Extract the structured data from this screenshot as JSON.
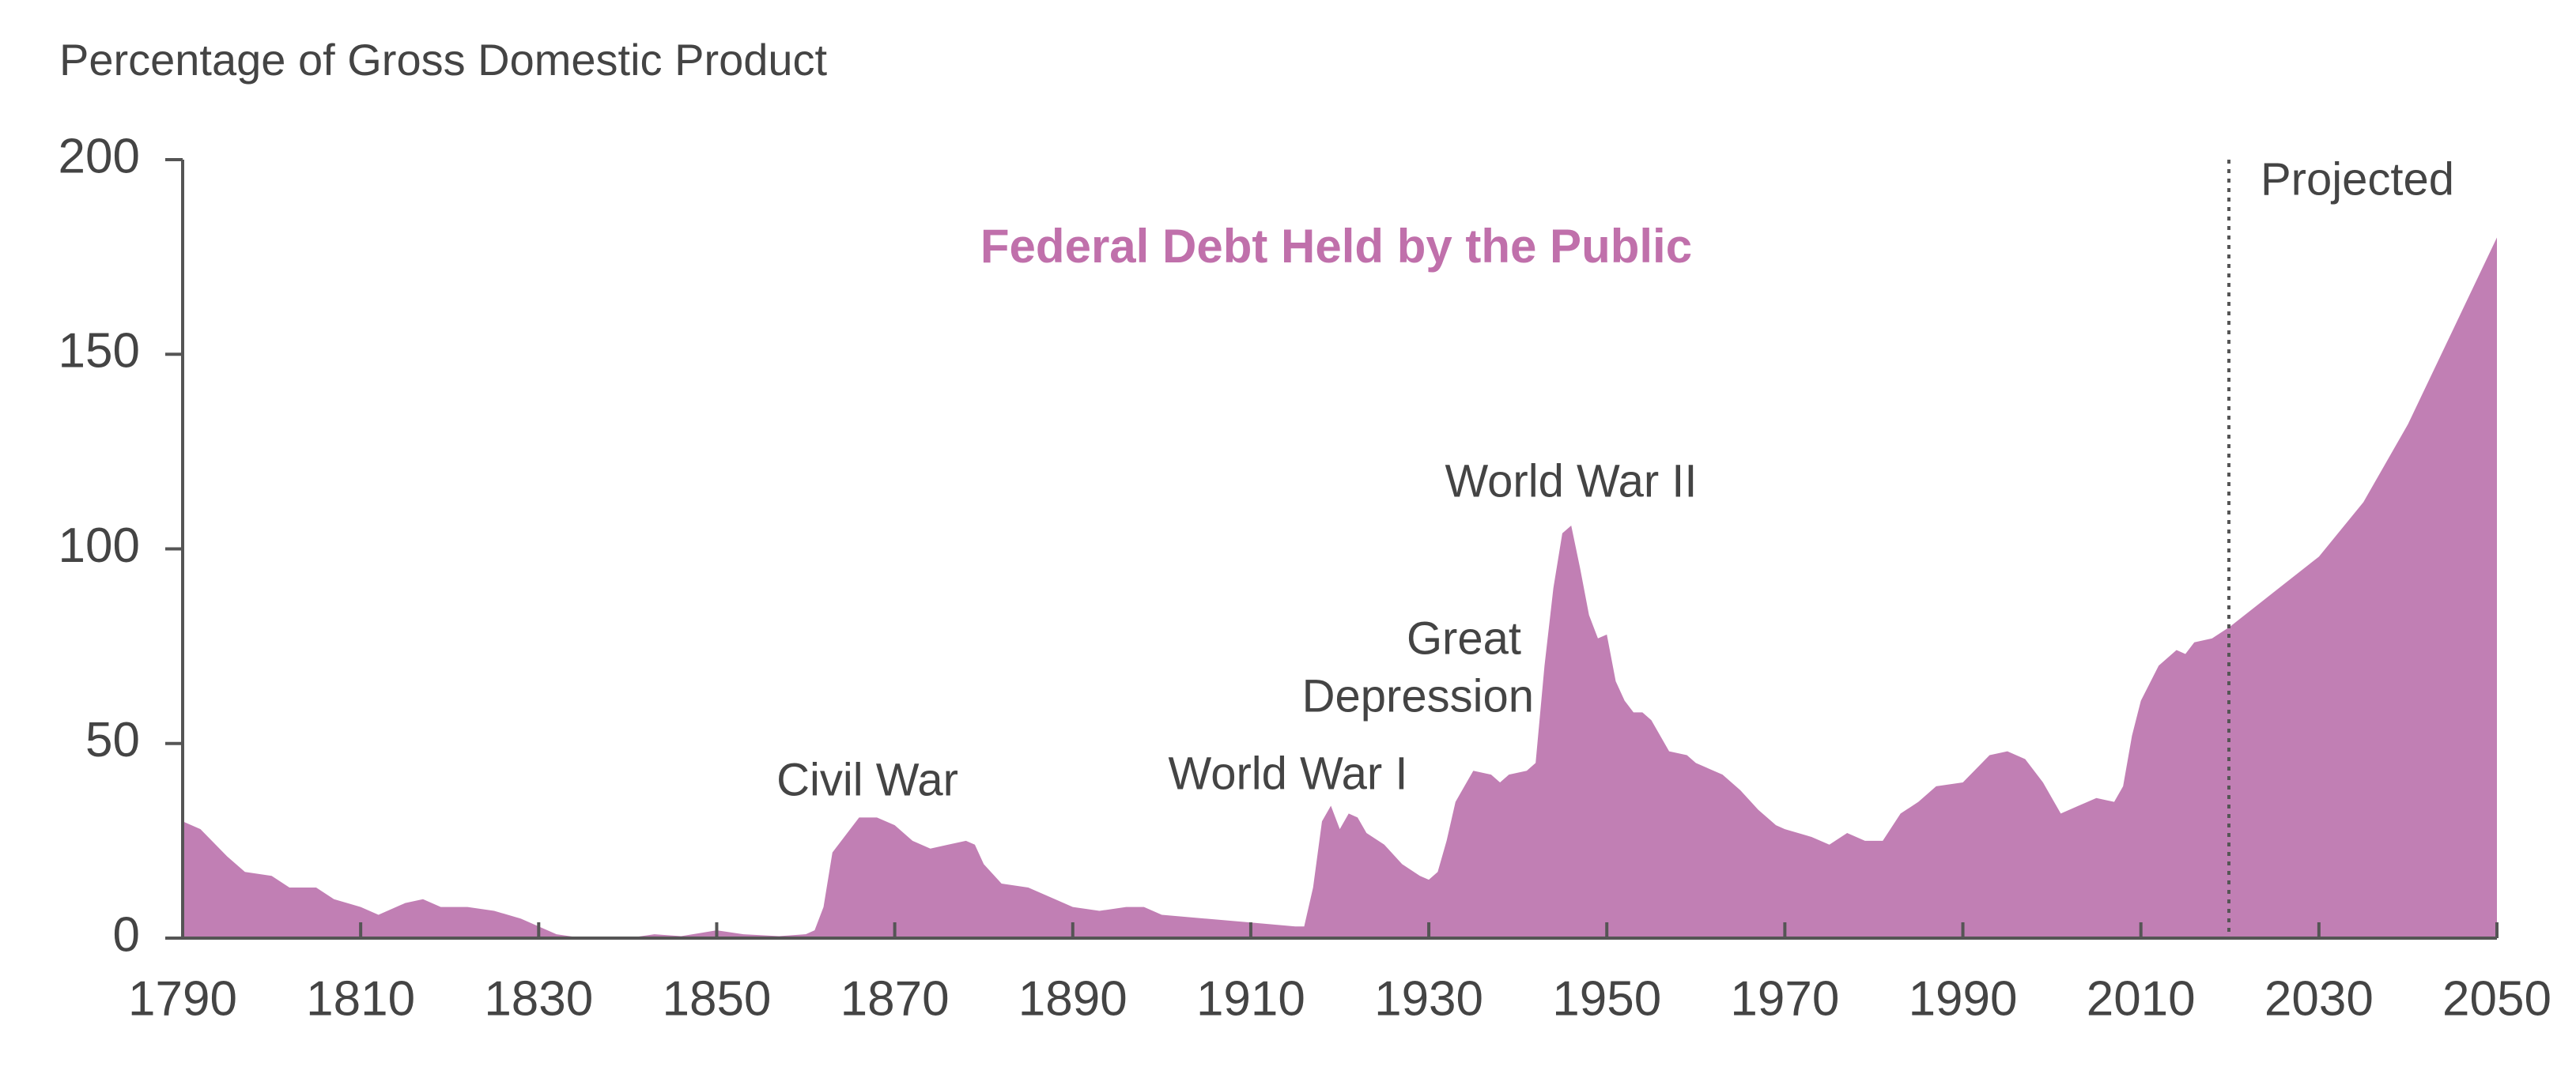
{
  "chart_data": {
    "type": "area",
    "title": "Percentage of Gross Domestic Product",
    "series": [
      {
        "name": "Federal Debt Held by the Public",
        "color": "#c17fb4",
        "x": [
          1790,
          1792,
          1795,
          1797,
          1800,
          1802,
          1805,
          1807,
          1810,
          1812,
          1815,
          1817,
          1819,
          1822,
          1825,
          1828,
          1830,
          1832,
          1835,
          1840,
          1843,
          1846,
          1850,
          1853,
          1857,
          1860,
          1861,
          1862,
          1863,
          1865,
          1866,
          1868,
          1870,
          1872,
          1874,
          1876,
          1878,
          1879,
          1880,
          1882,
          1885,
          1888,
          1890,
          1893,
          1896,
          1898,
          1900,
          1905,
          1910,
          1915,
          1916,
          1917,
          1918,
          1919,
          1920,
          1921,
          1922,
          1923,
          1925,
          1927,
          1929,
          1930,
          1931,
          1932,
          1933,
          1934,
          1935,
          1937,
          1938,
          1939,
          1941,
          1942,
          1943,
          1944,
          1945,
          1946,
          1947,
          1948,
          1949,
          1950,
          1951,
          1952,
          1953,
          1954,
          1955,
          1957,
          1959,
          1960,
          1963,
          1965,
          1967,
          1969,
          1970,
          1973,
          1975,
          1977,
          1979,
          1981,
          1983,
          1985,
          1987,
          1990,
          1993,
          1995,
          1997,
          1999,
          2001,
          2003,
          2005,
          2007,
          2008,
          2009,
          2010,
          2012,
          2014,
          2015,
          2016,
          2018,
          2020,
          2025,
          2030,
          2035,
          2040,
          2045,
          2050
        ],
        "values": [
          30,
          28,
          21,
          17,
          16,
          13,
          13,
          10,
          8,
          6,
          9,
          10,
          8,
          8,
          7,
          5,
          3,
          1,
          0,
          0,
          1,
          0.5,
          2,
          1,
          0.5,
          1,
          2,
          8,
          22,
          28,
          31,
          31,
          29,
          25,
          23,
          24,
          25,
          24,
          19,
          14,
          13,
          10,
          8,
          7,
          8,
          8,
          6,
          5,
          4,
          3,
          3,
          13,
          30,
          34,
          28,
          32,
          31,
          27,
          24,
          19,
          16,
          15,
          17,
          25,
          35,
          39,
          43,
          42,
          40,
          42,
          43,
          45,
          70,
          90,
          104,
          106,
          95,
          83,
          77,
          78,
          66,
          61,
          58,
          58,
          56,
          48,
          47,
          45,
          42,
          38,
          33,
          29,
          28,
          26,
          24,
          27,
          25,
          25,
          32,
          35,
          39,
          40,
          47,
          48,
          46,
          40,
          32,
          34,
          36,
          35,
          39,
          52,
          61,
          70,
          74,
          73,
          76,
          77,
          80,
          89,
          98,
          112,
          132,
          156,
          180
        ]
      }
    ],
    "annotations": [
      "Projected",
      "Civil War",
      "World War I",
      "Great",
      "Depression",
      "World War II"
    ],
    "xlim": [
      1790,
      2050
    ],
    "xticks": [
      1790,
      1810,
      1830,
      1850,
      1870,
      1890,
      1910,
      1930,
      1950,
      1970,
      1990,
      2010,
      2030,
      2050
    ],
    "ylim": [
      0,
      200
    ],
    "yticks": [
      0,
      50,
      100,
      150,
      200
    ]
  }
}
